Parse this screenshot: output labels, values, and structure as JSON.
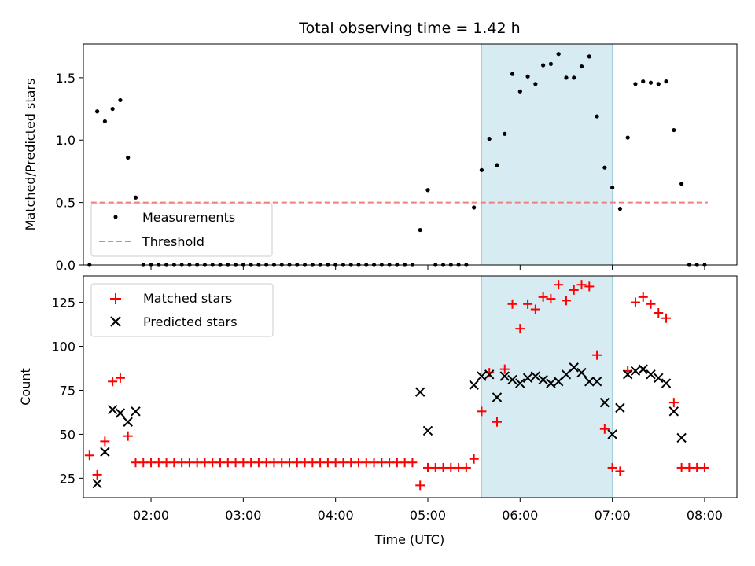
{
  "chart_data": [
    {
      "type": "scatter",
      "title": "Total observing time = 1.42 h",
      "ylabel": "Matched/Predicted stars",
      "xlabel": "",
      "xlim": [
        "01:16",
        "08:21"
      ],
      "ylim": [
        0,
        1.77
      ],
      "y_ticks": [
        0,
        0.5,
        1.0,
        1.5
      ],
      "y_tick_labels": [
        "0.0",
        "0.5",
        "1.0",
        "1.5"
      ],
      "x_ticks": [
        "02:00",
        "03:00",
        "04:00",
        "05:00",
        "06:00",
        "07:00",
        "08:00"
      ],
      "highlight_span": [
        "05:35",
        "07:00"
      ],
      "legend": {
        "position": "lower-left",
        "entries": [
          "Measurements",
          "Threshold"
        ]
      },
      "threshold": {
        "name": "Threshold",
        "value": 0.5,
        "x_range": [
          "01:21",
          "08:02"
        ],
        "color": "#f08080"
      },
      "series": [
        {
          "name": "Measurements",
          "color": "#000000",
          "x": [
            "01:20",
            "01:25",
            "01:30",
            "01:35",
            "01:40",
            "01:45",
            "01:50",
            "01:55",
            "02:00",
            "02:05",
            "02:10",
            "02:15",
            "02:20",
            "02:25",
            "02:30",
            "02:35",
            "02:40",
            "02:45",
            "02:50",
            "02:55",
            "03:00",
            "03:05",
            "03:10",
            "03:15",
            "03:20",
            "03:25",
            "03:30",
            "03:35",
            "03:40",
            "03:45",
            "03:50",
            "03:55",
            "04:00",
            "04:05",
            "04:10",
            "04:15",
            "04:20",
            "04:25",
            "04:30",
            "04:35",
            "04:40",
            "04:45",
            "04:50",
            "04:55",
            "05:00",
            "05:05",
            "05:10",
            "05:15",
            "05:20",
            "05:25",
            "05:30",
            "05:35",
            "05:40",
            "05:45",
            "05:50",
            "05:55",
            "06:00",
            "06:05",
            "06:10",
            "06:15",
            "06:20",
            "06:25",
            "06:30",
            "06:35",
            "06:40",
            "06:45",
            "06:50",
            "06:55",
            "07:00",
            "07:05",
            "07:10",
            "07:15",
            "07:20",
            "07:25",
            "07:30",
            "07:35",
            "07:40",
            "07:45",
            "07:50",
            "07:55",
            "08:00"
          ],
          "y": [
            0,
            1.23,
            1.15,
            1.25,
            1.32,
            0.86,
            0.54,
            0,
            0,
            0,
            0,
            0,
            0,
            0,
            0,
            0,
            0,
            0,
            0,
            0,
            0,
            0,
            0,
            0,
            0,
            0,
            0,
            0,
            0,
            0,
            0,
            0,
            0,
            0,
            0,
            0,
            0,
            0,
            0,
            0,
            0,
            0,
            0,
            0.28,
            0.6,
            0,
            0,
            0,
            0,
            0,
            0.46,
            0.76,
            1.01,
            0.8,
            1.05,
            1.53,
            1.39,
            1.51,
            1.45,
            1.6,
            1.61,
            1.69,
            1.5,
            1.5,
            1.59,
            1.67,
            1.19,
            0.78,
            0.62,
            0.45,
            1.02,
            1.45,
            1.47,
            1.46,
            1.45,
            1.47,
            1.08,
            0.65,
            0,
            0,
            0
          ]
        }
      ]
    },
    {
      "type": "scatter",
      "title": "",
      "ylabel": "Count",
      "xlabel": "Time (UTC)",
      "xlim": [
        "01:16",
        "08:21"
      ],
      "ylim": [
        14,
        140
      ],
      "y_ticks": [
        25,
        50,
        75,
        100,
        125
      ],
      "x_ticks": [
        "02:00",
        "03:00",
        "04:00",
        "05:00",
        "06:00",
        "07:00",
        "08:00"
      ],
      "highlight_span": [
        "05:35",
        "07:00"
      ],
      "legend": {
        "position": "upper-left",
        "entries": [
          "Matched stars",
          "Predicted stars"
        ]
      },
      "series": [
        {
          "name": "Matched stars",
          "color": "#ff0000",
          "marker": "plus",
          "x": [
            "01:20",
            "01:25",
            "01:30",
            "01:35",
            "01:40",
            "01:45",
            "01:50",
            "01:55",
            "02:00",
            "02:05",
            "02:10",
            "02:15",
            "02:20",
            "02:25",
            "02:30",
            "02:35",
            "02:40",
            "02:45",
            "02:50",
            "02:55",
            "03:00",
            "03:05",
            "03:10",
            "03:15",
            "03:20",
            "03:25",
            "03:30",
            "03:35",
            "03:40",
            "03:45",
            "03:50",
            "03:55",
            "04:00",
            "04:05",
            "04:10",
            "04:15",
            "04:20",
            "04:25",
            "04:30",
            "04:35",
            "04:40",
            "04:45",
            "04:50",
            "04:55",
            "05:00",
            "05:05",
            "05:10",
            "05:15",
            "05:20",
            "05:25",
            "05:30",
            "05:35",
            "05:40",
            "05:45",
            "05:50",
            "05:55",
            "06:00",
            "06:05",
            "06:10",
            "06:15",
            "06:20",
            "06:25",
            "06:30",
            "06:35",
            "06:40",
            "06:45",
            "06:50",
            "06:55",
            "07:00",
            "07:05",
            "07:10",
            "07:15",
            "07:20",
            "07:25",
            "07:30",
            "07:35",
            "07:40",
            "07:45",
            "07:50",
            "07:55",
            "08:00"
          ],
          "y": [
            38,
            27,
            46,
            80,
            82,
            49,
            34,
            34,
            34,
            34,
            34,
            34,
            34,
            34,
            34,
            34,
            34,
            34,
            34,
            34,
            34,
            34,
            34,
            34,
            34,
            34,
            34,
            34,
            34,
            34,
            34,
            34,
            34,
            34,
            34,
            34,
            34,
            34,
            34,
            34,
            34,
            34,
            34,
            21,
            31,
            31,
            31,
            31,
            31,
            31,
            36,
            63,
            85,
            57,
            87,
            124,
            110,
            124,
            121,
            128,
            127,
            135,
            126,
            132,
            135,
            134,
            95,
            53,
            31,
            29,
            86,
            125,
            128,
            124,
            119,
            116,
            68,
            31,
            31,
            31,
            31
          ]
        },
        {
          "name": "Predicted stars",
          "color": "#000000",
          "marker": "cross",
          "x": [
            "01:25",
            "01:30",
            "01:35",
            "01:40",
            "01:45",
            "01:50",
            "04:55",
            "05:00",
            "05:30",
            "05:35",
            "05:40",
            "05:45",
            "05:50",
            "05:55",
            "06:00",
            "06:05",
            "06:10",
            "06:15",
            "06:20",
            "06:25",
            "06:30",
            "06:35",
            "06:40",
            "06:45",
            "06:50",
            "06:55",
            "07:00",
            "07:05",
            "07:10",
            "07:15",
            "07:20",
            "07:25",
            "07:30",
            "07:35",
            "07:40",
            "07:45"
          ],
          "y": [
            22,
            40,
            64,
            62,
            57,
            63,
            74,
            52,
            78,
            83,
            84,
            71,
            83,
            81,
            79,
            82,
            83,
            81,
            79,
            80,
            84,
            88,
            85,
            80,
            80,
            68,
            50,
            65,
            84,
            86,
            87,
            84,
            82,
            79,
            63,
            48
          ]
        }
      ]
    }
  ]
}
